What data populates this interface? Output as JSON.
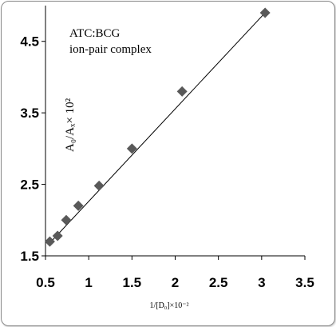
{
  "chart_data": {
    "type": "scatter",
    "title": "",
    "annotation_lines": [
      "ATC:BCG",
      "ion-pair complex"
    ],
    "xlabel": "1/[D₀]×10⁻²",
    "ylabel": "A₀/Aₓ× 10²",
    "xlim": [
      0.5,
      3.5
    ],
    "ylim": [
      1.5,
      5.0
    ],
    "x_ticks": [
      "0.5",
      "1",
      "1.5",
      "2",
      "2.5",
      "3",
      "3.5"
    ],
    "x_tick_values": [
      0.5,
      1,
      1.5,
      2,
      2.5,
      3,
      3.5
    ],
    "y_ticks": [
      "1.5",
      "2.5",
      "3.5",
      "4.5"
    ],
    "y_tick_values": [
      1.5,
      2.5,
      3.5,
      4.5
    ],
    "grid": false,
    "legend": "none",
    "marker": "diamond",
    "marker_color": "#595959",
    "line_color": "#000000",
    "series": [
      {
        "points": [
          {
            "x": 0.55,
            "y": 1.7
          },
          {
            "x": 0.64,
            "y": 1.78
          },
          {
            "x": 0.74,
            "y": 2.0
          },
          {
            "x": 0.88,
            "y": 2.2
          },
          {
            "x": 1.12,
            "y": 2.48
          },
          {
            "x": 1.5,
            "y": 3.0
          },
          {
            "x": 2.08,
            "y": 3.8
          },
          {
            "x": 3.04,
            "y": 4.9
          }
        ]
      }
    ],
    "trendline": {
      "x": [
        0.55,
        3.04
      ],
      "y": [
        1.68,
        4.9
      ]
    }
  }
}
